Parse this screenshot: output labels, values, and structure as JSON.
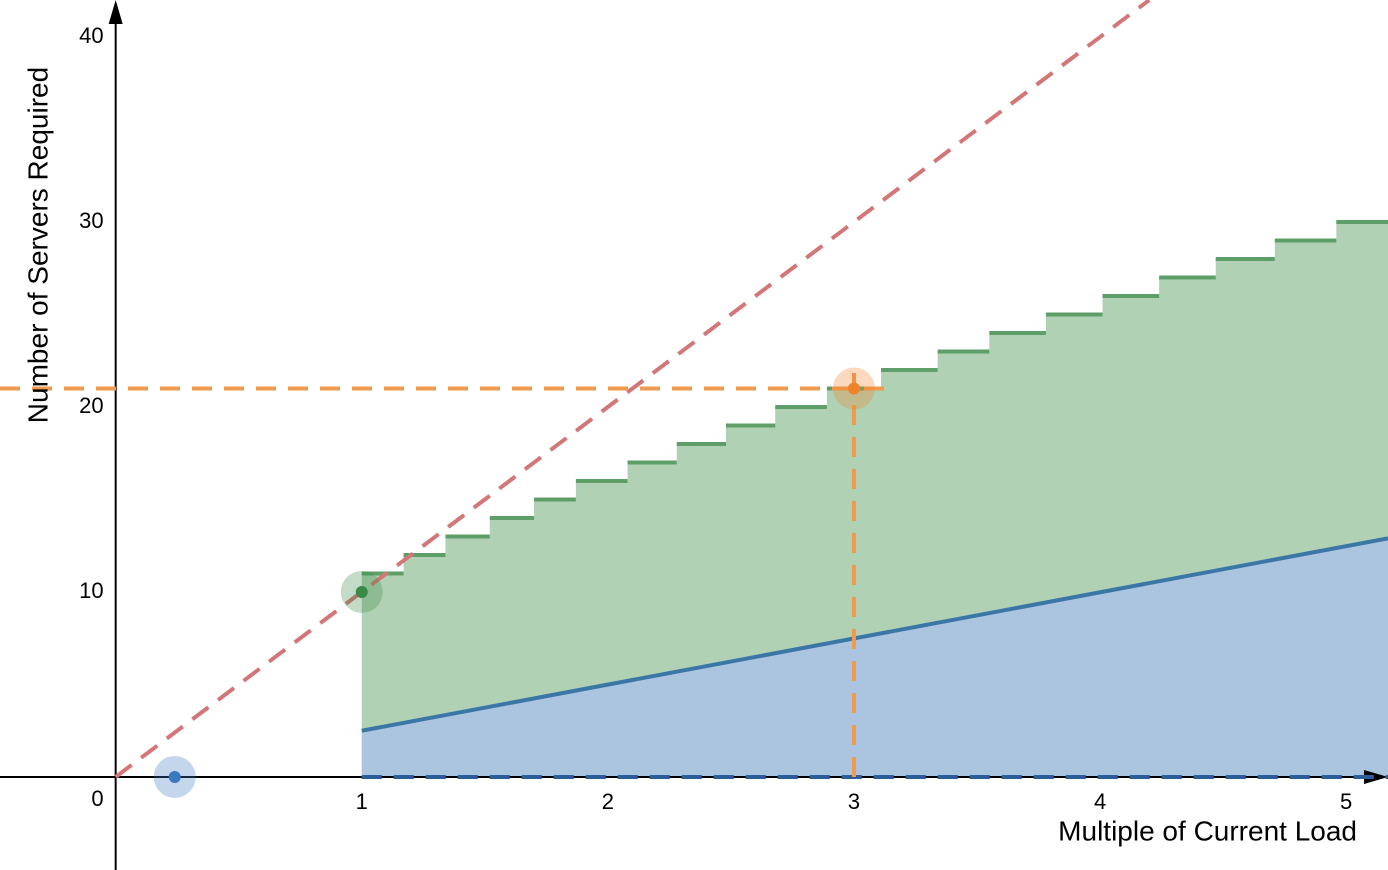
{
  "chart_data": {
    "type": "line",
    "x_label": "Multiple of Current Load",
    "y_label": "Number of Servers Required",
    "xlim": [
      -0.47,
      5.17
    ],
    "ylim": [
      -5.03,
      42
    ],
    "xticks": [
      0,
      1,
      2,
      3,
      4,
      5
    ],
    "yticks": [
      10,
      20,
      30,
      40
    ],
    "grid": false,
    "series": [
      {
        "kind": "step",
        "color": "#5e9e68",
        "fill": "#b1d1b5",
        "bins": [
          1,
          1.17,
          1.34,
          1.52,
          1.7,
          1.87,
          2.08,
          2.28,
          2.48,
          2.68,
          2.89,
          3.11,
          3.34,
          3.55,
          3.78,
          4.01,
          4.24,
          4.47,
          4.71,
          4.96,
          5.17
        ],
        "values": [
          11,
          12,
          13,
          14,
          15,
          16,
          17,
          18,
          19,
          20,
          21,
          22,
          23,
          24,
          25,
          26,
          27,
          28,
          29,
          30
        ]
      },
      {
        "kind": "line",
        "color": "#3a77a6",
        "fill": "#abc5e0",
        "x": [
          1,
          5.17
        ],
        "values": [
          2.5,
          12.9
        ]
      },
      {
        "kind": "dashed",
        "color": "#2d5d9a",
        "x": [
          1,
          5.17
        ],
        "values": [
          0,
          0
        ]
      },
      {
        "kind": "dashed",
        "color": "#d47677",
        "x": [
          0,
          4.2
        ],
        "values": [
          0,
          42
        ]
      },
      {
        "kind": "dashed",
        "color": "#ef9a4f",
        "x": [
          -0.47,
          3.16
        ],
        "values": [
          21,
          21
        ]
      },
      {
        "kind": "dashed",
        "color": "#ef9a4f",
        "x": [
          3,
          3
        ],
        "values": [
          0,
          22
        ]
      },
      {
        "kind": "point",
        "color": "#3a78c0",
        "x": [
          0.24
        ],
        "values": [
          0
        ]
      },
      {
        "kind": "point",
        "color": "#3a8a47",
        "x": [
          1
        ],
        "values": [
          10
        ]
      },
      {
        "kind": "point",
        "color": "#f0822c",
        "x": [
          3
        ],
        "values": [
          21
        ]
      }
    ]
  }
}
